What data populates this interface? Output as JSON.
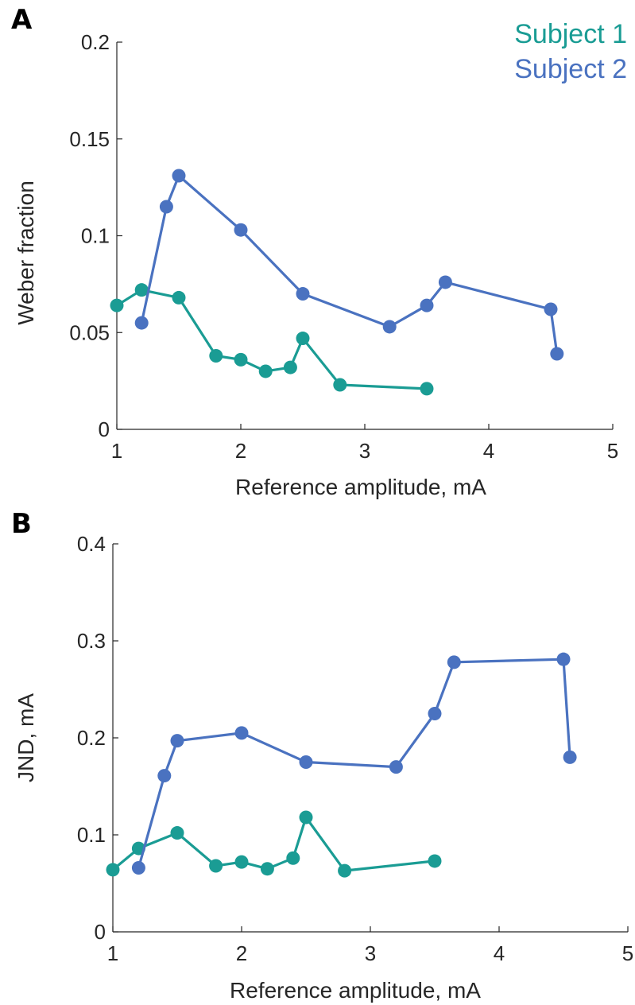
{
  "legend": {
    "position": "top-right",
    "entries": [
      {
        "label": "Subject 1",
        "color": "#1a9c94"
      },
      {
        "label": "Subject 2",
        "color": "#4a72c0"
      }
    ]
  },
  "chart_data": [
    {
      "panel": "A",
      "type": "line",
      "xlabel": "Reference amplitude, mA",
      "ylabel": "Weber fraction",
      "xlim": [
        1,
        5
      ],
      "ylim": [
        0,
        0.2
      ],
      "xticks": [
        1,
        2,
        3,
        4,
        5
      ],
      "yticks": [
        0,
        0.05,
        0.1,
        0.15,
        0.2
      ],
      "xtick_labels": [
        "1",
        "2",
        "3",
        "4",
        "5"
      ],
      "ytick_labels": [
        "0",
        "0.05",
        "0.1",
        "0.15",
        "0.2"
      ],
      "grid": false,
      "series": [
        {
          "name": "Subject 1",
          "color": "#1a9c94",
          "x": [
            1.0,
            1.2,
            1.5,
            1.8,
            2.0,
            2.2,
            2.4,
            2.5,
            2.8,
            3.5
          ],
          "y": [
            0.064,
            0.072,
            0.068,
            0.038,
            0.036,
            0.03,
            0.032,
            0.047,
            0.023,
            0.021
          ]
        },
        {
          "name": "Subject 2",
          "color": "#4a72c0",
          "x": [
            1.2,
            1.4,
            1.5,
            2.0,
            2.5,
            3.2,
            3.5,
            3.65,
            4.5,
            4.55
          ],
          "y": [
            0.055,
            0.115,
            0.131,
            0.103,
            0.07,
            0.053,
            0.064,
            0.076,
            0.062,
            0.039
          ]
        }
      ]
    },
    {
      "panel": "B",
      "type": "line",
      "xlabel": "Reference amplitude, mA",
      "ylabel": "JND, mA",
      "xlim": [
        1,
        5
      ],
      "ylim": [
        0,
        0.4
      ],
      "xticks": [
        1,
        2,
        3,
        4,
        5
      ],
      "yticks": [
        0,
        0.1,
        0.2,
        0.3,
        0.4
      ],
      "xtick_labels": [
        "1",
        "2",
        "3",
        "4",
        "5"
      ],
      "ytick_labels": [
        "0",
        "0.1",
        "0.2",
        "0.3",
        "0.4"
      ],
      "grid": false,
      "series": [
        {
          "name": "Subject 1",
          "color": "#1a9c94",
          "x": [
            1.0,
            1.2,
            1.5,
            1.8,
            2.0,
            2.2,
            2.4,
            2.5,
            2.8,
            3.5
          ],
          "y": [
            0.064,
            0.086,
            0.102,
            0.068,
            0.072,
            0.065,
            0.076,
            0.118,
            0.063,
            0.073
          ]
        },
        {
          "name": "Subject 2",
          "color": "#4a72c0",
          "x": [
            1.2,
            1.4,
            1.5,
            2.0,
            2.5,
            3.2,
            3.5,
            3.65,
            4.5,
            4.55
          ],
          "y": [
            0.066,
            0.161,
            0.197,
            0.205,
            0.175,
            0.17,
            0.225,
            0.278,
            0.281,
            0.18
          ]
        }
      ]
    }
  ]
}
